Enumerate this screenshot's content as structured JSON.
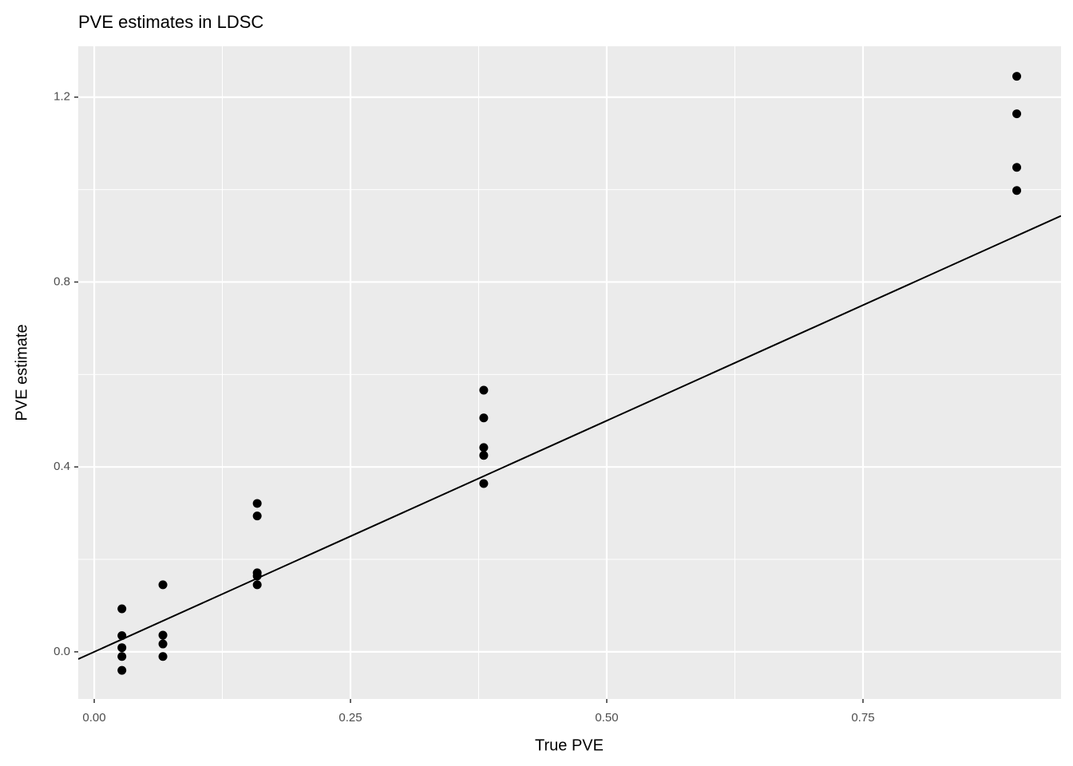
{
  "chart_data": {
    "type": "scatter",
    "title": "PVE estimates in LDSC",
    "x_label": "True PVE",
    "y_label": "PVE estimate",
    "x": [
      0.027,
      0.027,
      0.027,
      0.027,
      0.027,
      0.067,
      0.067,
      0.067,
      0.067,
      0.159,
      0.159,
      0.159,
      0.159,
      0.159,
      0.38,
      0.38,
      0.38,
      0.38,
      0.38,
      0.9,
      0.9,
      0.9,
      0.9
    ],
    "values": [
      0.093,
      0.035,
      0.009,
      -0.01,
      -0.04,
      0.145,
      0.036,
      0.017,
      -0.01,
      0.321,
      0.294,
      0.171,
      0.164,
      0.145,
      0.566,
      0.506,
      0.442,
      0.425,
      0.364,
      1.245,
      1.164,
      1.048,
      0.998
    ],
    "color": "#000000",
    "reference_line": {
      "slope": 1,
      "intercept": 0,
      "color": "#000000"
    },
    "xlim": [
      -0.0156,
      0.9432
    ],
    "ylim": [
      -0.102,
      1.31
    ],
    "xticks": [
      {
        "value": 0,
        "label": "0.00"
      },
      0.25,
      {
        "value": 0.5,
        "label": "0.50"
      },
      0.75
    ],
    "yticks": [
      {
        "value": 0,
        "label": "0.0"
      },
      0.4,
      0.8,
      1.2
    ],
    "grid": true
  }
}
